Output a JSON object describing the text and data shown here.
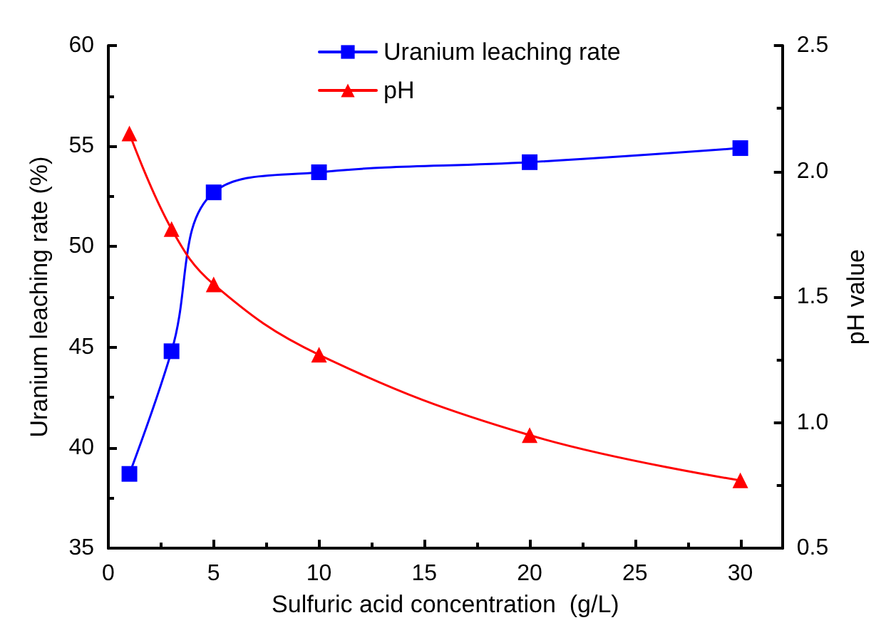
{
  "chart_data": {
    "type": "line",
    "xlabel": "Sulfuric acid concentration  (g/L)",
    "ylabel": "Uranium leaching rate (%)",
    "y2label": "pH value",
    "x": [
      1,
      3,
      5,
      10,
      20,
      30
    ],
    "xlim": [
      0,
      32
    ],
    "xticks": [
      0,
      5,
      10,
      15,
      20,
      25,
      30
    ],
    "ylim": [
      35,
      60
    ],
    "yticks": [
      35,
      40,
      45,
      50,
      55,
      60
    ],
    "y2lim": [
      0.5,
      2.5
    ],
    "y2ticks": [
      {
        "value": 0.5,
        "label": "0.5"
      },
      {
        "value": 1,
        "label": "1.0"
      },
      {
        "value": 1.5,
        "label": "1.5"
      },
      {
        "value": 2,
        "label": "2.0"
      },
      {
        "value": 2.5,
        "label": "2.5"
      }
    ],
    "grid": false,
    "legend": "top",
    "line_style": "solid",
    "series": [
      {
        "name": "Uranium leaching rate",
        "color": "#0000ff",
        "marker": "square",
        "values": [
          38.7,
          44.8,
          52.7,
          53.7,
          54.2,
          54.9
        ]
      },
      {
        "name": "pH",
        "color": "#ff0000",
        "marker": "triangle",
        "axis": "y2",
        "values": [
          2.15,
          1.77,
          1.55,
          1.27,
          0.95,
          0.77
        ]
      }
    ]
  }
}
